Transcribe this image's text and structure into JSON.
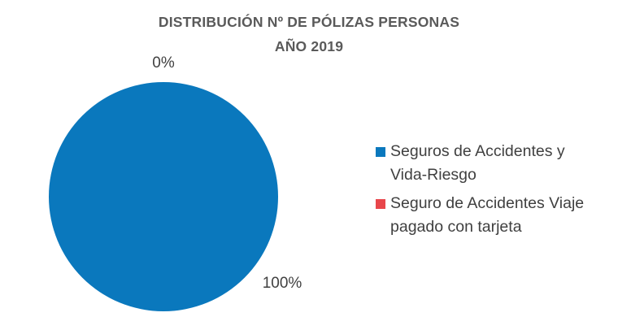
{
  "chart_data": {
    "type": "pie",
    "title": "DISTRIBUCIÓN Nº DE PÓLIZAS PERSONAS",
    "subtitle": "AÑO 2019",
    "categories": [
      "Seguros de Accidentes y Vida-Riesgo",
      "Seguro de Accidentes Viaje pagado con tarjeta"
    ],
    "values": [
      100,
      0
    ],
    "data_labels": [
      "100%",
      "0%"
    ],
    "colors": [
      "#0A78BD",
      "#E8464B"
    ],
    "legend_position": "right"
  }
}
